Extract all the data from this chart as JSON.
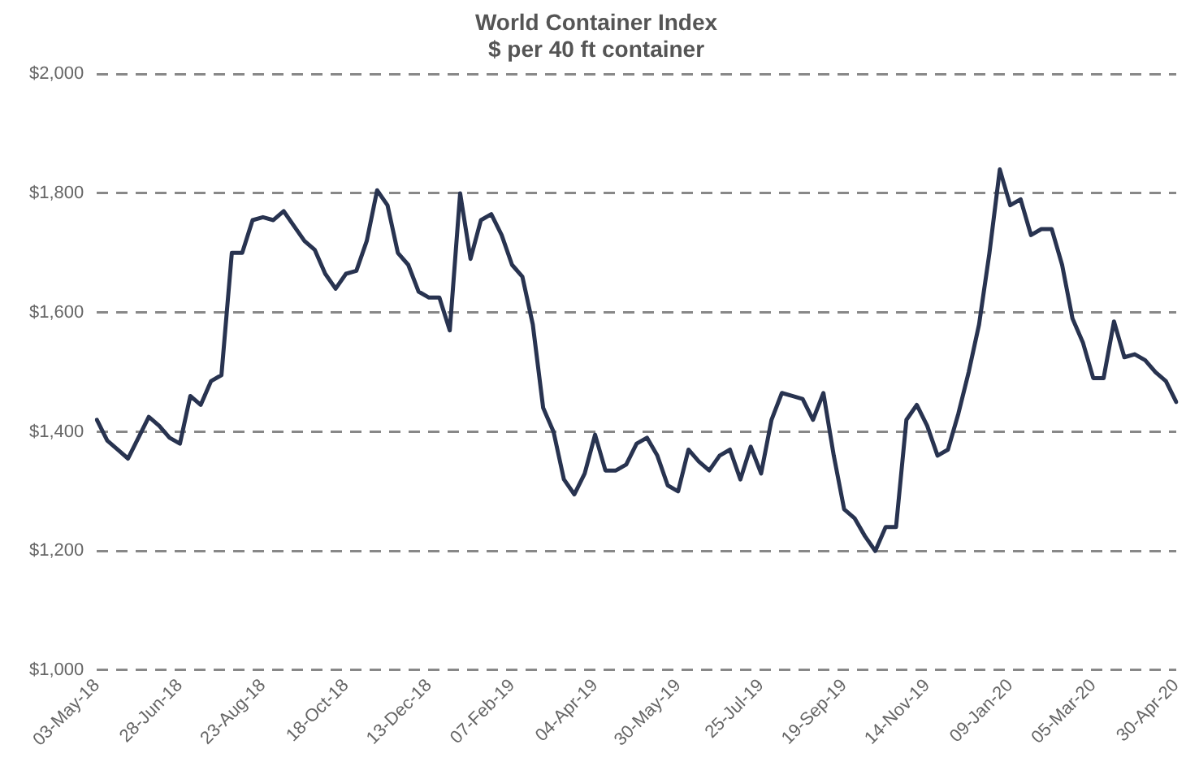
{
  "chart_data": {
    "type": "line",
    "title": "World Container Index",
    "subtitle": "$ per 40 ft container",
    "categories": [
      "03-May-18",
      null,
      null,
      null,
      null,
      null,
      null,
      null,
      "28-Jun-18",
      null,
      null,
      null,
      null,
      null,
      null,
      null,
      "23-Aug-18",
      null,
      null,
      null,
      null,
      null,
      null,
      null,
      "18-Oct-18",
      null,
      null,
      null,
      null,
      null,
      null,
      null,
      "13-Dec-18",
      null,
      null,
      null,
      null,
      null,
      null,
      null,
      "07-Feb-19",
      null,
      null,
      null,
      null,
      null,
      null,
      null,
      "04-Apr-19",
      null,
      null,
      null,
      null,
      null,
      null,
      null,
      "30-May-19",
      null,
      null,
      null,
      null,
      null,
      null,
      null,
      "25-Jul-19",
      null,
      null,
      null,
      null,
      null,
      null,
      null,
      "19-Sep-19",
      null,
      null,
      null,
      null,
      null,
      null,
      null,
      "14-Nov-19",
      null,
      null,
      null,
      null,
      null,
      null,
      null,
      "09-Jan-20",
      null,
      null,
      null,
      null,
      null,
      null,
      null,
      "05-Mar-20",
      null,
      null,
      null,
      null,
      null,
      null,
      null,
      "30-Apr-20"
    ],
    "series": [
      {
        "color": "#283350",
        "values": [
          1420,
          1385,
          1370,
          1355,
          1390,
          1425,
          1410,
          1390,
          1380,
          1460,
          1445,
          1485,
          1495,
          1700,
          1700,
          1755,
          1760,
          1755,
          1770,
          1745,
          1720,
          1705,
          1665,
          1640,
          1665,
          1670,
          1720,
          1805,
          1780,
          1700,
          1680,
          1635,
          1625,
          1625,
          1570,
          1800,
          1690,
          1755,
          1765,
          1730,
          1680,
          1660,
          1580,
          1440,
          1400,
          1320,
          1295,
          1330,
          1395,
          1335,
          1335,
          1345,
          1380,
          1390,
          1360,
          1310,
          1300,
          1370,
          1350,
          1335,
          1360,
          1370,
          1320,
          1375,
          1330,
          1420,
          1465,
          1460,
          1455,
          1420,
          1465,
          1360,
          1270,
          1255,
          1225,
          1200,
          1240,
          1240,
          1420,
          1445,
          1410,
          1360,
          1370,
          1430,
          1500,
          1580,
          1700,
          1840,
          1780,
          1790,
          1730,
          1740,
          1740,
          1680,
          1590,
          1550,
          1490,
          1490,
          1585,
          1525,
          1530,
          1520,
          1500,
          1485,
          1450
        ]
      }
    ],
    "ylim": [
      1000,
      2000
    ],
    "yticks": [
      {
        "value": 1000,
        "label": "$1,000"
      },
      {
        "value": 1200,
        "label": "$1,200"
      },
      {
        "value": 1400,
        "label": "$1,400"
      },
      {
        "value": 1600,
        "label": "$1,600"
      },
      {
        "value": 1800,
        "label": "$1,800"
      },
      {
        "value": 2000,
        "label": "$2,000"
      }
    ],
    "grid": "y",
    "legend": false,
    "marker": "none",
    "line_style": "solid"
  }
}
